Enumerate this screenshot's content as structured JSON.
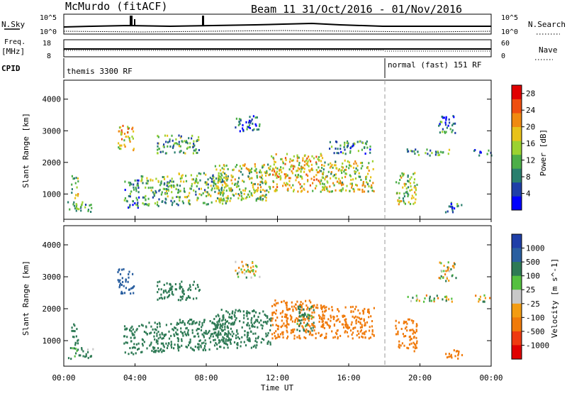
{
  "header": {
    "station": "McMurdo (fitACF)",
    "beam_info": "Beam 11  31/Oct/2016 - 01/Nov/2016"
  },
  "strip_panels": {
    "nsky_label": "N.Sky",
    "nsearch_label": "N.Search",
    "nsky_ticks": [
      "10^5",
      "10^0"
    ],
    "nsearch_ticks": [
      "10^5",
      "10^0"
    ],
    "freq_label": "Freq.",
    "freq_unit": "[MHz]",
    "freq_ticks": [
      "18",
      "8"
    ],
    "nave_label": "Nave",
    "nave_ticks": [
      "60",
      "0"
    ],
    "cpid_label": "CPID",
    "cpid_segments": [
      {
        "label": "themis 3300 RF",
        "start_hour": 0.0
      },
      {
        "label": "normal (fast) 151 RF",
        "start_hour": 18.0
      }
    ]
  },
  "colors": {
    "power_scale": [
      "#0000ff",
      "#1f3fa8",
      "#2a7f6e",
      "#4cae48",
      "#9bd230",
      "#e8c21a",
      "#f08a10",
      "#ef4f10",
      "#e00000"
    ],
    "velocity_scale": [
      "#1f3fa8",
      "#2a5fa0",
      "#2e7a55",
      "#55c040",
      "#c8c8c8",
      "#f39c12",
      "#f07a0a",
      "#ef3a10",
      "#e00000"
    ],
    "ground_scatter": "#b8b8b8"
  },
  "chart_data": [
    {
      "type": "heatmap",
      "panel": "power",
      "ylabel": "Slant Range [km]",
      "xlabel": "Time UT",
      "x_ticks": [
        "00:00",
        "04:00",
        "08:00",
        "12:00",
        "16:00",
        "20:00",
        "00:00"
      ],
      "y_ticks": [
        "1000",
        "2000",
        "3000",
        "4000"
      ],
      "ylim": [
        200,
        4600
      ],
      "xlim_hours": [
        0,
        24
      ],
      "colorbar": {
        "label": "Power [dB]",
        "ticks": [
          "4",
          "8",
          "12",
          "16",
          "20",
          "24",
          "28"
        ],
        "range": [
          0,
          30
        ]
      },
      "regions": [
        {
          "t0": 0.2,
          "t1": 1.6,
          "r0": 450,
          "r1": 800,
          "value": 10
        },
        {
          "t0": 0.4,
          "t1": 0.8,
          "r0": 900,
          "r1": 1600,
          "value": 14
        },
        {
          "t0": 3.0,
          "t1": 3.9,
          "r0": 2400,
          "r1": 3200,
          "value": 18
        },
        {
          "t0": 3.3,
          "t1": 4.2,
          "r0": 600,
          "r1": 1500,
          "value": 8
        },
        {
          "t0": 4.3,
          "t1": 6.4,
          "r0": 650,
          "r1": 1600,
          "value": 12
        },
        {
          "t0": 5.2,
          "t1": 7.6,
          "r0": 2300,
          "r1": 2900,
          "value": 11
        },
        {
          "t0": 6.4,
          "t1": 9.2,
          "r0": 700,
          "r1": 1700,
          "value": 13
        },
        {
          "t0": 8.4,
          "t1": 11.6,
          "r0": 800,
          "r1": 2000,
          "value": 15
        },
        {
          "t0": 9.6,
          "t1": 11.0,
          "r0": 3000,
          "r1": 3500,
          "value": 6
        },
        {
          "t0": 11.6,
          "t1": 14.6,
          "r0": 1100,
          "r1": 2300,
          "value": 18
        },
        {
          "t0": 14.4,
          "t1": 17.4,
          "r0": 1100,
          "r1": 2100,
          "value": 16
        },
        {
          "t0": 14.8,
          "t1": 17.2,
          "r0": 2300,
          "r1": 2700,
          "value": 9
        },
        {
          "t0": 18.6,
          "t1": 19.8,
          "r0": 700,
          "r1": 1700,
          "value": 14
        },
        {
          "t0": 19.2,
          "t1": 21.8,
          "r0": 2250,
          "r1": 2450,
          "value": 10
        },
        {
          "t0": 21.0,
          "t1": 22.0,
          "r0": 2900,
          "r1": 3500,
          "value": 7
        },
        {
          "t0": 21.4,
          "t1": 22.4,
          "r0": 450,
          "r1": 750,
          "value": 8
        },
        {
          "t0": 23.0,
          "t1": 24.0,
          "r0": 2250,
          "r1": 2450,
          "value": 6
        }
      ]
    },
    {
      "type": "heatmap",
      "panel": "velocity",
      "ylabel": "Slant Range [km]",
      "xlabel": "Time UT",
      "x_ticks": [
        "00:00",
        "04:00",
        "08:00",
        "12:00",
        "16:00",
        "20:00",
        "00:00"
      ],
      "y_ticks": [
        "1000",
        "2000",
        "3000",
        "4000"
      ],
      "ylim": [
        200,
        4600
      ],
      "xlim_hours": [
        0,
        24
      ],
      "colorbar": {
        "label": "Velocity [m s^-1]",
        "ticks": [
          "1000",
          "500",
          "100",
          "25",
          "-25",
          "-100",
          "-500",
          "-1000"
        ]
      },
      "regions": [
        {
          "t0": 0.2,
          "t1": 1.6,
          "r0": 450,
          "r1": 800,
          "value": 100
        },
        {
          "t0": 0.4,
          "t1": 0.8,
          "r0": 900,
          "r1": 1600,
          "value": 300
        },
        {
          "t0": 3.0,
          "t1": 3.9,
          "r0": 2500,
          "r1": 3300,
          "value": 800
        },
        {
          "t0": 3.3,
          "t1": 4.2,
          "r0": 600,
          "r1": 1500,
          "value": 300
        },
        {
          "t0": 4.3,
          "t1": 6.4,
          "r0": 650,
          "r1": 1600,
          "value": 300
        },
        {
          "t0": 5.2,
          "t1": 7.6,
          "r0": 2300,
          "r1": 2900,
          "value": 300
        },
        {
          "t0": 6.4,
          "t1": 9.2,
          "r0": 700,
          "r1": 1700,
          "value": 300
        },
        {
          "t0": 8.4,
          "t1": 11.6,
          "r0": 800,
          "r1": 2000,
          "value": 300
        },
        {
          "t0": 9.6,
          "t1": 11.0,
          "r0": 3000,
          "r1": 3500,
          "value": 0
        },
        {
          "t0": 11.6,
          "t1": 14.6,
          "r0": 1100,
          "r1": 2300,
          "value": -300
        },
        {
          "t0": 13.0,
          "t1": 14.0,
          "r0": 1300,
          "r1": 2100,
          "value": 200
        },
        {
          "t0": 14.4,
          "t1": 17.4,
          "r0": 1100,
          "r1": 2100,
          "value": -300
        },
        {
          "t0": 18.6,
          "t1": 19.8,
          "r0": 700,
          "r1": 1700,
          "value": -300
        },
        {
          "t0": 19.2,
          "t1": 21.8,
          "r0": 2250,
          "r1": 2450,
          "value": 0
        },
        {
          "t0": 21.0,
          "t1": 22.0,
          "r0": 2900,
          "r1": 3500,
          "value": 0
        },
        {
          "t0": 21.4,
          "t1": 22.4,
          "r0": 450,
          "r1": 750,
          "value": -300
        },
        {
          "t0": 23.0,
          "t1": 24.0,
          "r0": 2250,
          "r1": 2450,
          "value": 0
        }
      ]
    }
  ]
}
